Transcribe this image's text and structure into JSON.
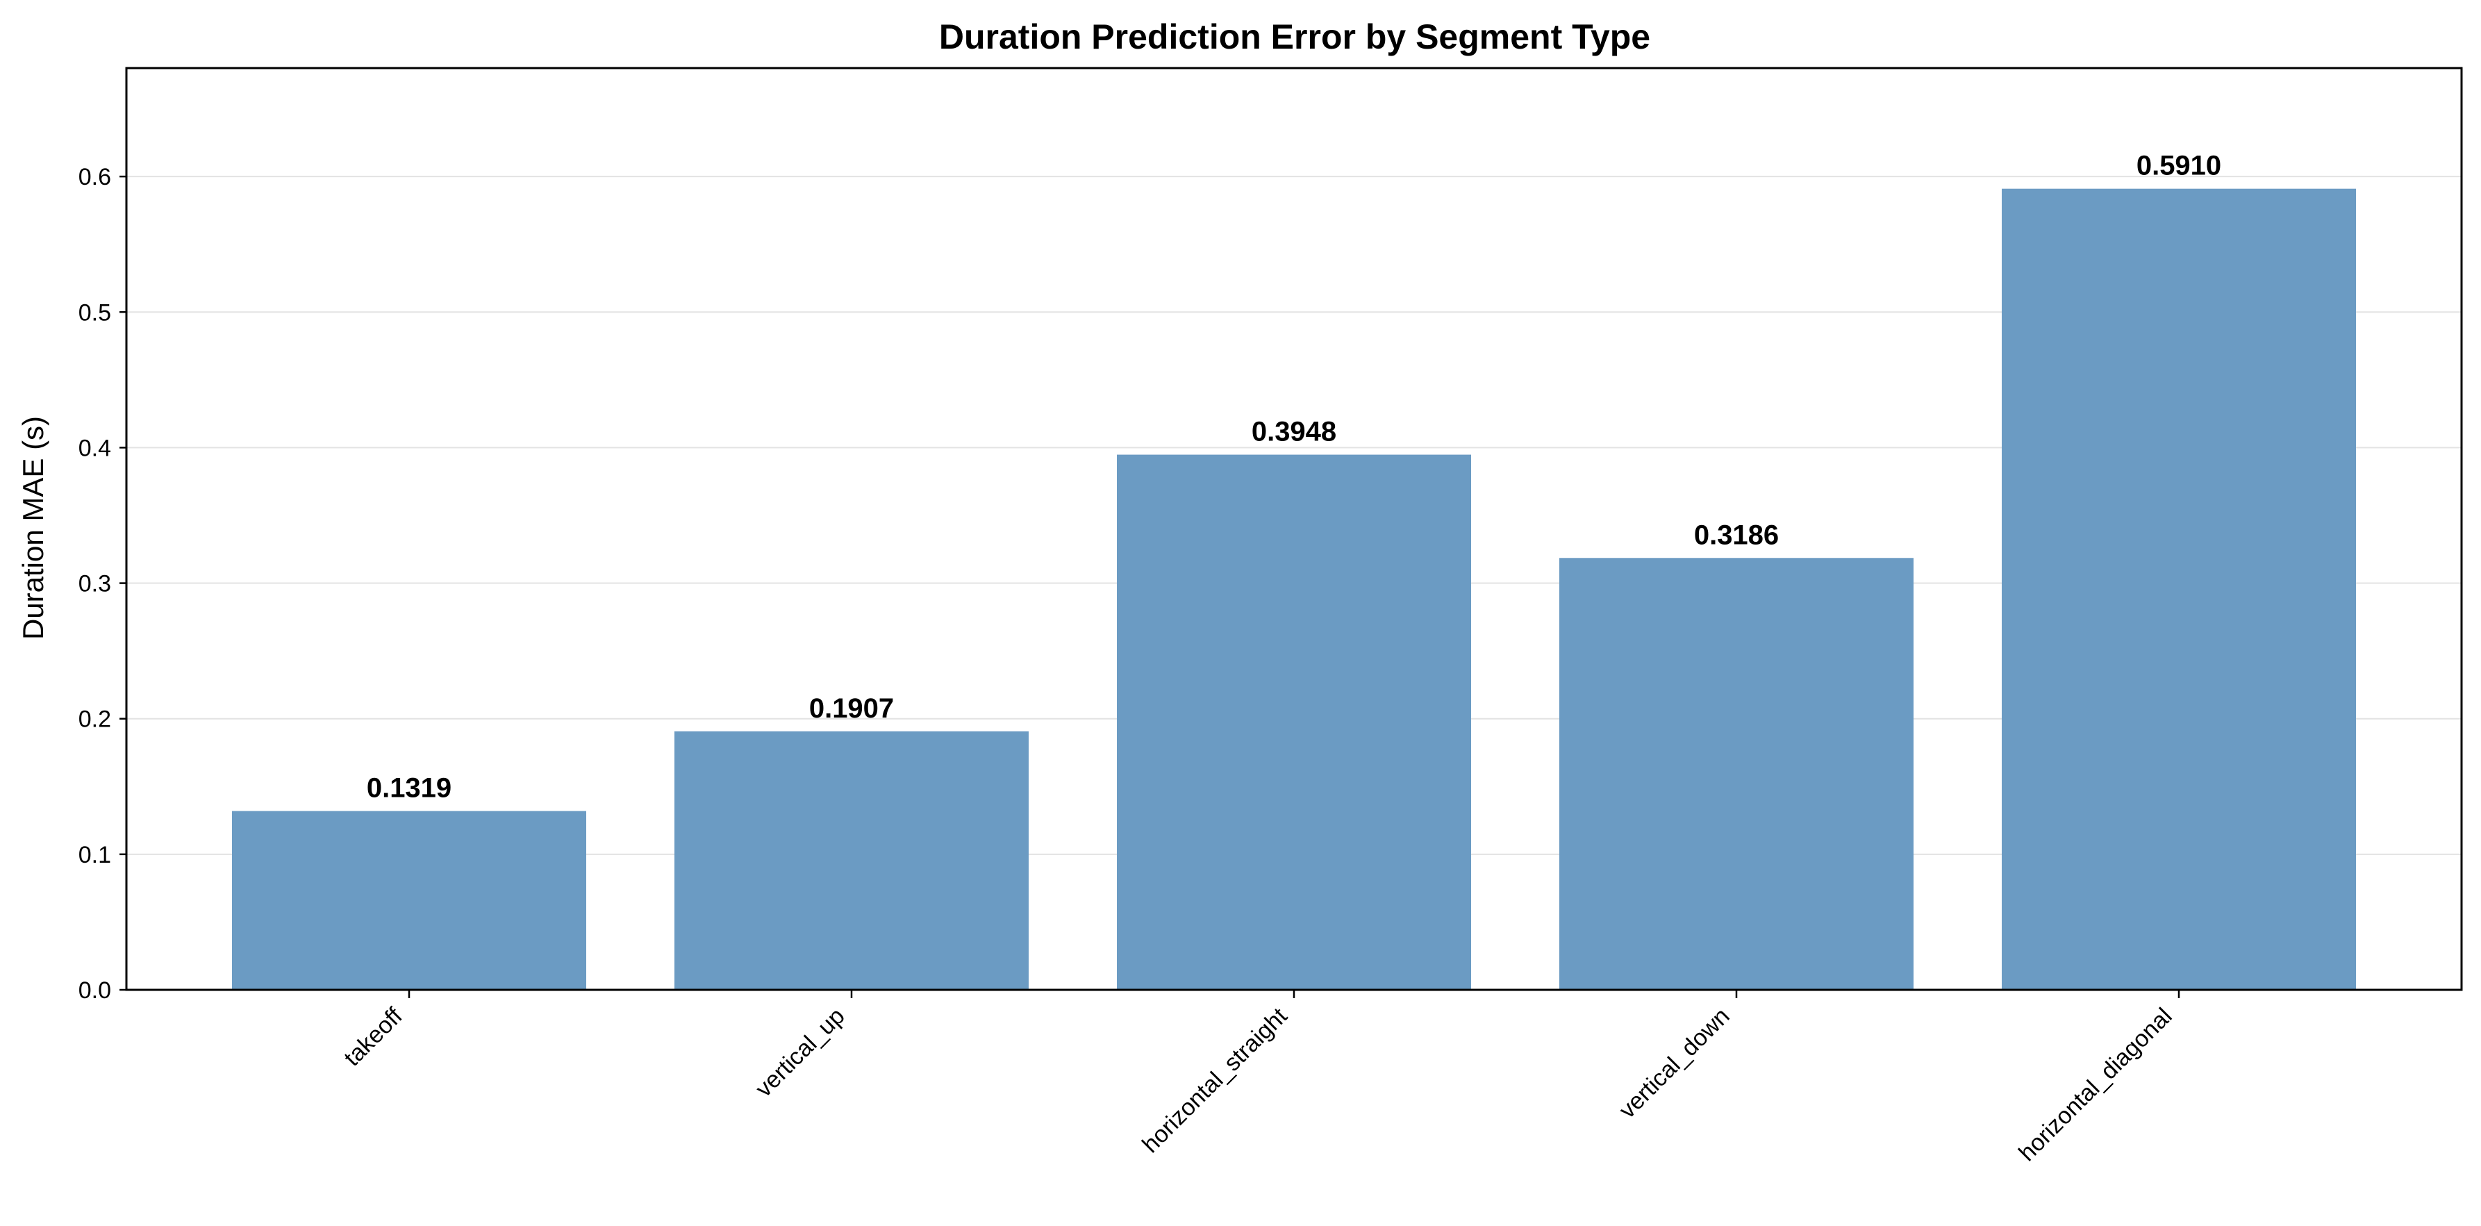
{
  "chart_data": {
    "type": "bar",
    "title": "Duration Prediction Error by Segment Type",
    "xlabel": "",
    "ylabel": "Duration MAE (s)",
    "categories": [
      "takeoff",
      "vertical_up",
      "horizontal_straight",
      "vertical_down",
      "horizontal_diagonal"
    ],
    "values": [
      0.1319,
      0.1907,
      0.3948,
      0.3186,
      0.591
    ],
    "data_labels": [
      "0.1319",
      "0.1907",
      "0.3948",
      "0.3186",
      "0.5910"
    ],
    "ylim": [
      0,
      0.68
    ],
    "yticks": [
      0.0,
      0.1,
      0.2,
      0.3,
      0.4,
      0.5,
      0.6
    ],
    "ytick_labels": [
      "0.0",
      "0.1",
      "0.2",
      "0.3",
      "0.4",
      "0.5",
      "0.6"
    ],
    "grid": "horizontal",
    "bar_color": "#6b9bc3",
    "grid_color": "#e3e3e3"
  }
}
